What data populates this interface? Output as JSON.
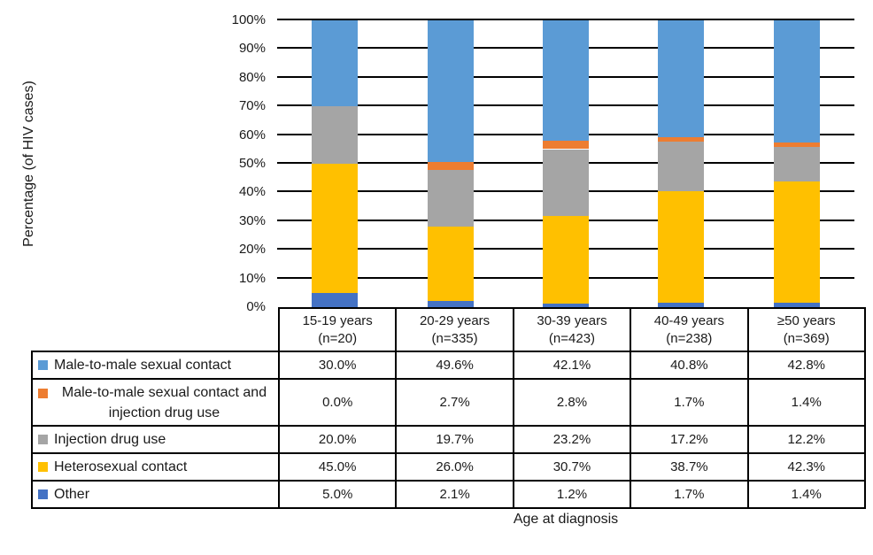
{
  "chart_data": {
    "type": "bar",
    "stacked": true,
    "orientation": "vertical",
    "title": "",
    "xlabel": "Age at diagnosis",
    "ylabel": "Percentage (of HIV cases)",
    "ylim": [
      0,
      100
    ],
    "y_ticks": [
      "0%",
      "10%",
      "20%",
      "30%",
      "40%",
      "50%",
      "60%",
      "70%",
      "80%",
      "90%",
      "100%"
    ],
    "gridlines": "horizontal-black",
    "value_format": "one-decimal-percent",
    "categories": [
      {
        "label": "15-19 years",
        "n": "(n=20)"
      },
      {
        "label": "20-29 years",
        "n": "(n=335)"
      },
      {
        "label": "30-39 years",
        "n": "(n=423)"
      },
      {
        "label": "40-49 years",
        "n": "(n=238)"
      },
      {
        "label": "≥50 years",
        "n": "(n=369)"
      }
    ],
    "series": [
      {
        "name": "Male-to-male sexual contact",
        "color": "#5B9BD5",
        "values": [
          30.0,
          49.6,
          42.1,
          40.8,
          42.8
        ]
      },
      {
        "name": "Male-to-male sexual contact and injection drug use",
        "color": "#ED7D31",
        "values": [
          0.0,
          2.7,
          2.8,
          1.7,
          1.4
        ]
      },
      {
        "name": "Injection drug use",
        "color": "#A5A5A5",
        "values": [
          20.0,
          19.7,
          23.2,
          17.2,
          12.2
        ]
      },
      {
        "name": "Heterosexual contact",
        "color": "#FFC000",
        "values": [
          45.0,
          26.0,
          30.7,
          38.7,
          42.3
        ]
      },
      {
        "name": "Other",
        "color": "#4472C4",
        "values": [
          5.0,
          2.1,
          1.2,
          1.7,
          1.4
        ]
      }
    ],
    "stack_order_bottom_to_top": [
      "Other",
      "Heterosexual contact",
      "Injection drug use",
      "Male-to-male sexual contact and injection drug use",
      "Male-to-male sexual contact"
    ],
    "legend_position": "table-left-column"
  },
  "chart": {
    "y_axis_title": "Percentage (of HIV cases)",
    "x_axis_title": "Age at diagnosis"
  }
}
